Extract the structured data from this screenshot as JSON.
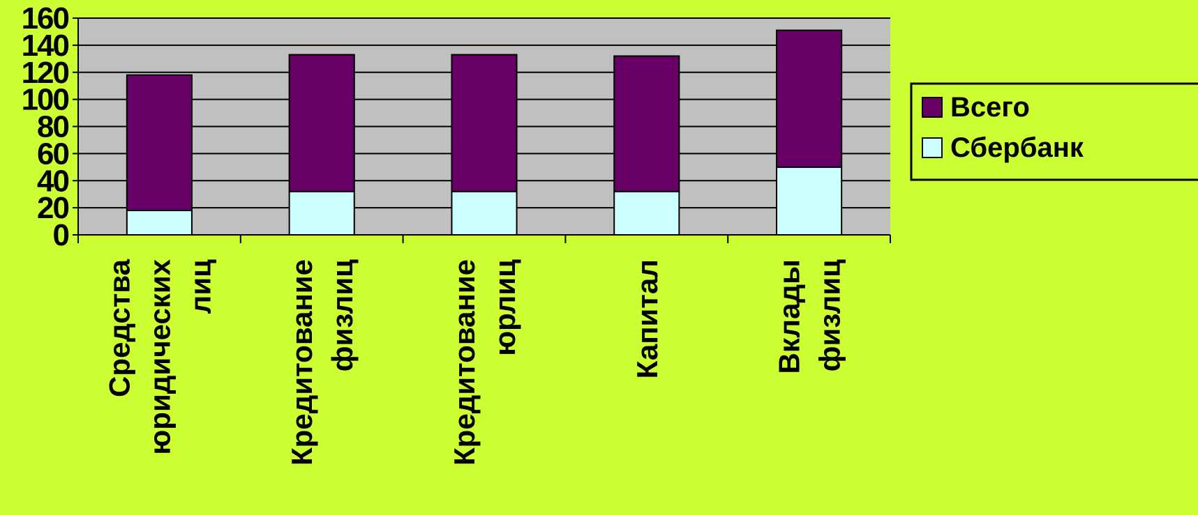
{
  "chart_data": {
    "type": "bar",
    "stacked": true,
    "title": "",
    "xlabel": "",
    "ylabel": "",
    "ylim": [
      0,
      160
    ],
    "yticks": [
      0,
      20,
      40,
      60,
      80,
      100,
      120,
      140,
      160
    ],
    "grid": true,
    "legend_position": "right",
    "categories": [
      [
        "Средства",
        "юридических",
        "лиц"
      ],
      [
        "Кредитование",
        "физлиц"
      ],
      [
        "Кредитование",
        "юрлиц"
      ],
      [
        "Капитал"
      ],
      [
        "Вклады",
        "физлиц"
      ]
    ],
    "series": [
      {
        "name": "Сбербанк",
        "color": "#ccffff",
        "values": [
          18,
          32,
          32,
          32,
          50
        ]
      },
      {
        "name": "Всего",
        "color": "#660066",
        "values": [
          100,
          101,
          101,
          100,
          101
        ]
      }
    ],
    "legend": [
      {
        "name": "Всего",
        "color": "#660066"
      },
      {
        "name": "Сбербанк",
        "color": "#ccffff"
      }
    ],
    "colors": {
      "background": "#ccff33",
      "plot_area": "#c0c0c0"
    }
  }
}
